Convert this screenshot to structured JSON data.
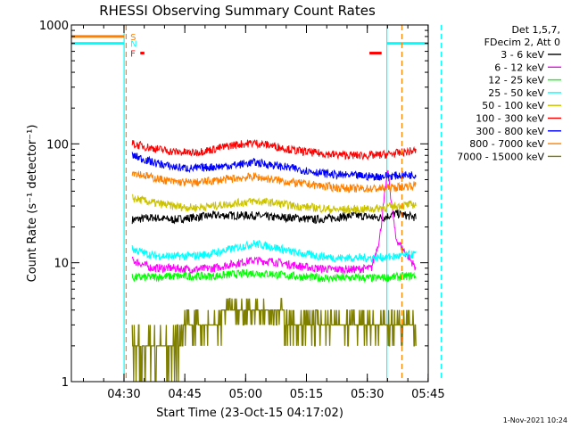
{
  "chart_data": {
    "type": "line",
    "title": "RHESSI Observing Summary Count Rates",
    "xlabel": "Start Time (23-Oct-15 04:17:02)",
    "ylabel": "Count Rate (s⁻¹ detector⁻¹)",
    "x_unit": "minutes after 04:17:02 (23-Oct-15)",
    "xlim": [
      0,
      88
    ],
    "ylim": [
      1,
      1000
    ],
    "y_scale": "log",
    "x_ticks": [
      {
        "value": 12.97,
        "label": "04:30"
      },
      {
        "value": 27.97,
        "label": "04:45"
      },
      {
        "value": 42.97,
        "label": "05:00"
      },
      {
        "value": 57.97,
        "label": "05:15"
      },
      {
        "value": 72.97,
        "label": "05:30"
      },
      {
        "value": 87.97,
        "label": "05:45"
      }
    ],
    "y_ticks": [
      {
        "value": 1,
        "label": "1"
      },
      {
        "value": 10,
        "label": "10"
      },
      {
        "value": 100,
        "label": "100"
      },
      {
        "value": 1000,
        "label": "1000"
      }
    ],
    "legend_placement": "top-right outside",
    "legend_header": [
      "Det 1,5,7,",
      "FDecim 2, Att 0"
    ],
    "footer_date": "1-Nov-2021 10:24",
    "series": [
      {
        "name": "3 - 6 keV",
        "color": "#000000",
        "x": [
          15,
          20,
          25,
          30,
          35,
          40,
          45,
          50,
          55,
          60,
          65,
          70,
          75,
          77,
          80,
          85
        ],
        "y": [
          23,
          24,
          23,
          24,
          25,
          25,
          25,
          24,
          24,
          23,
          24,
          25,
          24,
          24,
          26,
          24
        ]
      },
      {
        "name": "6 - 12 keV",
        "color": "#ff00ff",
        "x": [
          15,
          20,
          25,
          30,
          35,
          40,
          45,
          50,
          55,
          60,
          65,
          70,
          74,
          76,
          78,
          80,
          85
        ],
        "y": [
          10.5,
          9.0,
          9.0,
          8.8,
          9.0,
          9.8,
          10.5,
          10.2,
          9.5,
          9.0,
          8.8,
          8.8,
          9.0,
          16,
          60,
          16,
          9.0
        ]
      },
      {
        "name": "12 - 25 keV",
        "color": "#00ff00",
        "x": [
          15,
          20,
          25,
          30,
          35,
          40,
          45,
          50,
          55,
          60,
          65,
          70,
          75,
          80,
          85
        ],
        "y": [
          7.5,
          7.6,
          7.7,
          7.7,
          7.7,
          8.0,
          8.2,
          8.0,
          7.7,
          7.5,
          7.4,
          7.5,
          7.4,
          7.6,
          7.8
        ]
      },
      {
        "name": "25 - 50 keV",
        "color": "#00ffff",
        "x": [
          15,
          20,
          25,
          30,
          35,
          40,
          45,
          50,
          55,
          60,
          65,
          70,
          75,
          80,
          85
        ],
        "y": [
          13,
          11.5,
          11.3,
          11.4,
          12.0,
          13.2,
          14.5,
          13.5,
          12.2,
          11.5,
          11.0,
          11.0,
          11.0,
          11.3,
          11.8
        ]
      },
      {
        "name": "50 - 100 keV",
        "color": "#ccc300",
        "x": [
          15,
          20,
          25,
          30,
          35,
          40,
          45,
          50,
          55,
          60,
          65,
          70,
          75,
          80,
          85
        ],
        "y": [
          35,
          32,
          30,
          29,
          30,
          31.5,
          33,
          32,
          30,
          29,
          28,
          28,
          28.5,
          30,
          31
        ]
      },
      {
        "name": "100 - 300 keV",
        "color": "#ff0000",
        "x": [
          15,
          20,
          25,
          30,
          35,
          40,
          45,
          50,
          55,
          60,
          65,
          70,
          75,
          80,
          85
        ],
        "y": [
          100,
          92,
          86,
          84,
          90,
          98,
          102,
          96,
          88,
          84,
          81,
          80,
          80,
          83,
          88
        ]
      },
      {
        "name": "300 - 800 keV",
        "color": "#0000ff",
        "x": [
          15,
          20,
          25,
          30,
          35,
          40,
          45,
          50,
          55,
          60,
          65,
          70,
          75,
          80,
          85
        ],
        "y": [
          80,
          70,
          64,
          62,
          64,
          66,
          70,
          66,
          62,
          58,
          55,
          54,
          53,
          54,
          55
        ]
      },
      {
        "name": "800 - 7000 keV",
        "color": "#ff8000",
        "x": [
          15,
          20,
          25,
          30,
          35,
          40,
          45,
          50,
          55,
          60,
          65,
          70,
          75,
          80,
          85
        ],
        "y": [
          58,
          52,
          48,
          47,
          49,
          51,
          53,
          50,
          47,
          45,
          43,
          42,
          42,
          43,
          45
        ]
      },
      {
        "name": "7000 - 15000 keV",
        "color": "#808000",
        "x": [
          15,
          20,
          25,
          30,
          35,
          40,
          45,
          50,
          55,
          60,
          65,
          70,
          75,
          80,
          85
        ],
        "y": [
          2.5,
          2.4,
          2.2,
          3.0,
          3.3,
          3.8,
          4.5,
          4.0,
          3.0,
          2.5,
          2.6,
          2.7,
          2.6,
          2.5,
          3.0
        ]
      }
    ],
    "state_bars": [
      {
        "label": "S",
        "color": "#ff8000",
        "x_end": 13,
        "value": 800
      },
      {
        "label": "N",
        "color": "#00ffff",
        "x_end": 13,
        "value": 700
      }
    ],
    "flare_flag": {
      "label": "F",
      "color": "#ff0000",
      "segments": [
        [
          17,
          18
        ],
        [
          73.5,
          76.5
        ]
      ]
    },
    "night_periods": [
      {
        "color": "#00ffff",
        "x": [
          0,
          13
        ]
      },
      {
        "color": "#00ffff",
        "x": [
          77.8,
          88
        ]
      }
    ],
    "saa_lines": [
      {
        "color": "#ff8000",
        "x": 13.5
      },
      {
        "color": "#ff8000",
        "x": 81.5
      },
      {
        "color": "#00ffff",
        "x": 91.2
      }
    ]
  }
}
